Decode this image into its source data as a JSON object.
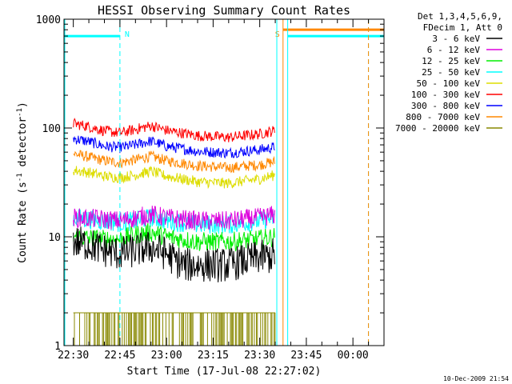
{
  "chart_data": {
    "type": "line",
    "title": "HESSI Observing Summary Count Rates",
    "xlabel": "Start Time (17-Jul-08 22:27:02)",
    "ylabel_main": "Count Rate (s",
    "ylabel_sup1": "-1",
    "ylabel_mid": " detector",
    "ylabel_sup2": "-1",
    "ylabel_end": ")",
    "y_scale": "log",
    "ylim": [
      1,
      1000
    ],
    "xlim_minutes": [
      -3,
      100
    ],
    "y_ticks": [
      {
        "value": 1,
        "label": "1"
      },
      {
        "value": 10,
        "label": "10"
      },
      {
        "value": 100,
        "label": "100"
      },
      {
        "value": 1000,
        "label": "1000"
      }
    ],
    "x_ticks": [
      {
        "value": 0,
        "label": "22:30"
      },
      {
        "value": 15,
        "label": "22:45"
      },
      {
        "value": 30,
        "label": "23:00"
      },
      {
        "value": 45,
        "label": "23:15"
      },
      {
        "value": 60,
        "label": "23:30"
      },
      {
        "value": 75,
        "label": "23:45"
      },
      {
        "value": 90,
        "label": "00:00"
      }
    ],
    "legend_header": [
      "Det 1,3,4,5,6,9,",
      "FDecim 1, Att 0"
    ],
    "legend_placement": "outside-right",
    "series": [
      {
        "name": "3 - 6 keV",
        "color": "#000000",
        "x": [
          0,
          5,
          10,
          15,
          20,
          25,
          30,
          33,
          36,
          40,
          45,
          50,
          55,
          60,
          63,
          65
        ],
        "y": [
          9,
          8.5,
          7.5,
          7,
          7.5,
          8,
          7,
          6,
          5.5,
          5.5,
          5.5,
          5.5,
          6,
          6.5,
          6.5,
          7
        ]
      },
      {
        "name": "6 - 12 keV",
        "color": "#dd00dd",
        "x": [
          0,
          10,
          15,
          20,
          25,
          30,
          40,
          50,
          60,
          65
        ],
        "y": [
          15,
          14.5,
          14,
          15,
          16,
          15,
          14,
          14,
          15,
          16
        ]
      },
      {
        "name": "12 - 25 keV",
        "color": "#00ee00",
        "x": [
          0,
          10,
          15,
          20,
          25,
          30,
          40,
          50,
          60,
          65
        ],
        "y": [
          10,
          9.5,
          9.5,
          10.5,
          11,
          10,
          9,
          9,
          9.5,
          10
        ]
      },
      {
        "name": "25 - 50 keV",
        "color": "#00ffff",
        "x": [
          0,
          10,
          15,
          20,
          25,
          30,
          40,
          50,
          60,
          65
        ],
        "y": [
          15,
          14,
          13.5,
          14,
          15,
          14,
          13,
          13,
          14,
          15
        ]
      },
      {
        "name": "50 - 100 keV",
        "color": "#dddd00",
        "x": [
          0,
          5,
          10,
          15,
          20,
          25,
          30,
          40,
          50,
          60,
          65
        ],
        "y": [
          41,
          39,
          36,
          35,
          37,
          40,
          36,
          32,
          31,
          34,
          37
        ]
      },
      {
        "name": "100 - 300 keV",
        "color": "#ff0000",
        "x": [
          0,
          5,
          10,
          15,
          20,
          25,
          30,
          40,
          50,
          60,
          65
        ],
        "y": [
          110,
          103,
          94,
          90,
          97,
          105,
          95,
          85,
          82,
          88,
          95
        ]
      },
      {
        "name": "300 - 800 keV",
        "color": "#0000ff",
        "x": [
          0,
          5,
          10,
          15,
          20,
          25,
          30,
          40,
          50,
          60,
          65
        ],
        "y": [
          80,
          75,
          68,
          66,
          70,
          76,
          68,
          61,
          59,
          63,
          67
        ]
      },
      {
        "name": "800 - 7000 keV",
        "color": "#ff8800",
        "x": [
          0,
          5,
          10,
          15,
          20,
          25,
          30,
          40,
          50,
          60,
          65
        ],
        "y": [
          58,
          54,
          50,
          48,
          51,
          55,
          50,
          45,
          43,
          46,
          49
        ]
      },
      {
        "name": "7000 - 20000 keV",
        "color": "#888800",
        "x": [
          0,
          65
        ],
        "y": [
          2,
          2
        ]
      }
    ],
    "attenuator_segments": [
      {
        "label": "",
        "x": [
          -3,
          15
        ],
        "y": 700,
        "color": "#00ffff"
      },
      {
        "label": "",
        "x": [
          69,
          100
        ],
        "y": 700,
        "color": "#00ffff"
      },
      {
        "label": "",
        "x": [
          67.5,
          100
        ],
        "y": 800,
        "color": "#ff8800"
      }
    ],
    "event_markers": [
      {
        "label": "N",
        "x": 15,
        "color": "#00ffff",
        "style": "dashed"
      },
      {
        "label": "S",
        "x": 67.5,
        "color": "#ff8800",
        "style": "solid"
      },
      {
        "label": "",
        "x": 65.5,
        "color": "#00ffff",
        "style": "solid"
      },
      {
        "label": "",
        "x": 69,
        "color": "#00ffff",
        "style": "solid"
      },
      {
        "label": "",
        "x": 95,
        "color": "#00ffff",
        "style": "dashed"
      },
      {
        "label": "",
        "x": 95,
        "color": "#ff8800",
        "style": "dashed"
      }
    ],
    "timestamp": "10-Dec-2009 21:54"
  }
}
